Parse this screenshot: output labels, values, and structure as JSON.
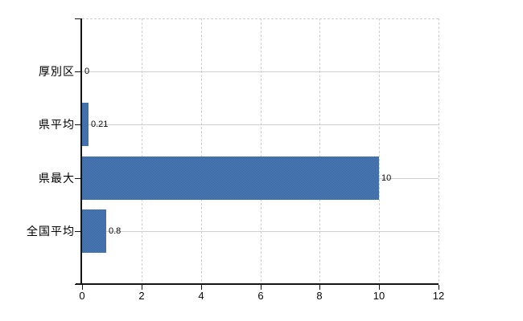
{
  "chart_data": {
    "type": "bar",
    "orientation": "horizontal",
    "title": "",
    "xlabel": "",
    "ylabel": "",
    "categories": [
      "厚別区",
      "県平均",
      "県最大",
      "全国平均"
    ],
    "values": [
      0,
      0.21,
      10,
      0.8
    ],
    "data_labels": [
      "0",
      "0.21",
      "10",
      "0.8"
    ],
    "x_ticks": [
      0,
      2,
      4,
      6,
      8,
      10,
      12
    ],
    "x_tick_labels": [
      "0",
      "2",
      "4",
      "6",
      "8",
      "10",
      "12"
    ],
    "xlim": [
      0,
      12
    ],
    "grid": "on",
    "grid_horizontal_style": "solid",
    "grid_vertical_style": "dashed",
    "legend": "none",
    "colors": {
      "bar": "#4371ab",
      "bar_dither_dark": "#3a68a4",
      "bar_dither_light": "#4d7ab2",
      "gridline": "#d0d0d0",
      "axis": "#141414",
      "text": "#000000",
      "background": "#ffffff"
    }
  }
}
